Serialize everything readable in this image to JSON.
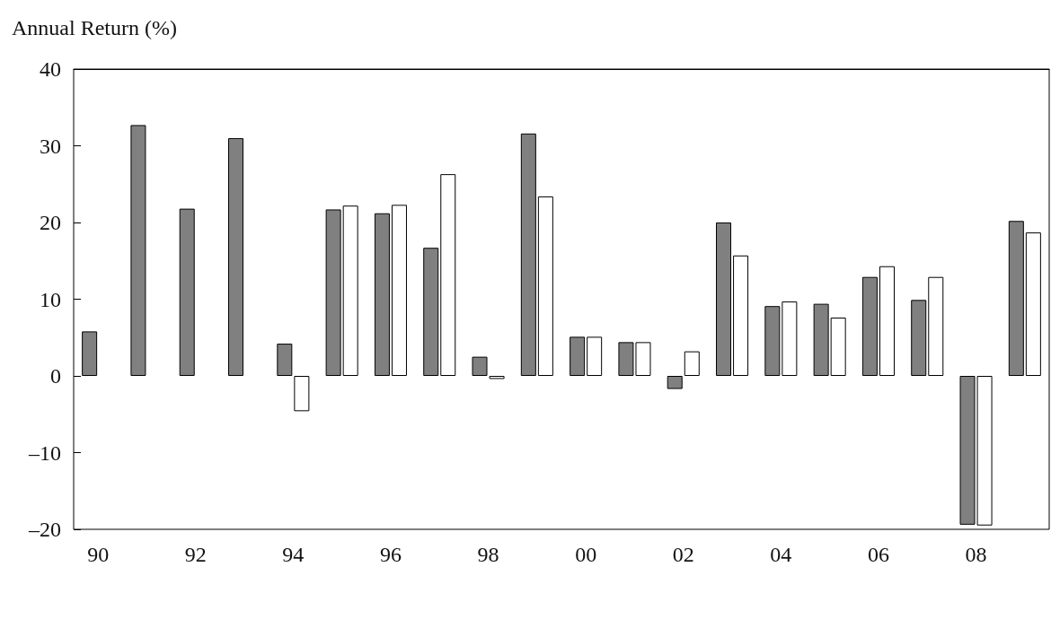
{
  "chart_data": {
    "type": "bar",
    "ylabel": "Annual Return (%)",
    "categories": [
      "90",
      null,
      "92",
      null,
      "94",
      null,
      "96",
      null,
      "98",
      null,
      "00",
      null,
      "02",
      null,
      "04",
      null,
      "06",
      null,
      "08",
      null
    ],
    "series": [
      {
        "color": "#808080",
        "values": [
          5.8,
          32.7,
          21.8,
          31.0,
          4.2,
          21.7,
          21.2,
          16.7,
          2.5,
          31.6,
          5.1,
          4.4,
          -1.7,
          20.0,
          9.1,
          9.4,
          12.9,
          9.9,
          -19.4,
          20.2
        ]
      },
      {
        "color": "#ffffff",
        "values": [
          null,
          null,
          null,
          null,
          -4.6,
          22.2,
          22.3,
          26.3,
          -0.4,
          23.4,
          5.1,
          4.4,
          3.2,
          15.7,
          9.7,
          7.6,
          14.3,
          12.9,
          -19.5,
          18.7
        ]
      }
    ],
    "ylim": [
      -20,
      40
    ],
    "yticks": [
      {
        "value": -20,
        "label": "–20"
      },
      {
        "value": -10,
        "label": "–10"
      },
      0,
      10,
      20,
      30,
      40
    ],
    "grid": false
  }
}
